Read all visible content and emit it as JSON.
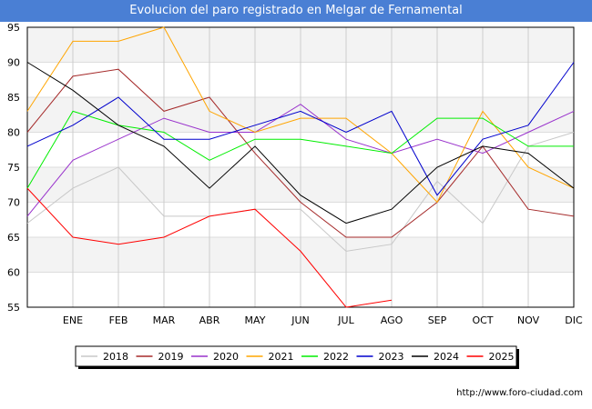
{
  "chart_data": {
    "type": "line",
    "title": "Evolucion del paro registrado en Melgar de Fernamental",
    "xlabel": "",
    "ylabel": "",
    "categories": [
      "",
      "ENE",
      "FEB",
      "MAR",
      "ABR",
      "MAY",
      "JUN",
      "JUL",
      "AGO",
      "SEP",
      "OCT",
      "NOV",
      "DIC"
    ],
    "ylim": [
      55,
      95
    ],
    "yticks": [
      55,
      60,
      65,
      70,
      75,
      80,
      85,
      90,
      95
    ],
    "grid": true,
    "legend_position": "bottom",
    "series": [
      {
        "name": "2018",
        "color": "#c8c8c8",
        "values": [
          67,
          72,
          75,
          68,
          68,
          69,
          69,
          63,
          64,
          73,
          67,
          78,
          80
        ]
      },
      {
        "name": "2019",
        "color": "#a52a2a",
        "values": [
          80,
          88,
          89,
          83,
          85,
          77,
          70,
          65,
          65,
          70,
          78,
          69,
          68
        ]
      },
      {
        "name": "2020",
        "color": "#9932cc",
        "values": [
          68,
          76,
          79,
          82,
          80,
          80,
          84,
          79,
          77,
          79,
          77,
          80,
          83
        ]
      },
      {
        "name": "2021",
        "color": "#ffa500",
        "values": [
          83,
          93,
          93,
          95,
          83,
          80,
          82,
          82,
          77,
          70,
          83,
          75,
          72
        ]
      },
      {
        "name": "2022",
        "color": "#00ee00",
        "values": [
          72,
          83,
          81,
          80,
          76,
          79,
          79,
          78,
          77,
          82,
          82,
          78,
          78
        ]
      },
      {
        "name": "2023",
        "color": "#0000cd",
        "values": [
          78,
          81,
          85,
          79,
          79,
          81,
          83,
          80,
          83,
          71,
          79,
          81,
          90
        ]
      },
      {
        "name": "2024",
        "color": "#000000",
        "values": [
          90,
          86,
          81,
          78,
          72,
          78,
          71,
          67,
          69,
          75,
          78,
          77,
          72
        ]
      },
      {
        "name": "2025",
        "color": "#ff0000",
        "values": [
          72,
          65,
          64,
          65,
          68,
          69,
          63,
          55,
          56,
          null,
          null,
          null,
          null
        ]
      }
    ]
  },
  "footer": {
    "source_url": "http://www.foro-ciudad.com"
  }
}
